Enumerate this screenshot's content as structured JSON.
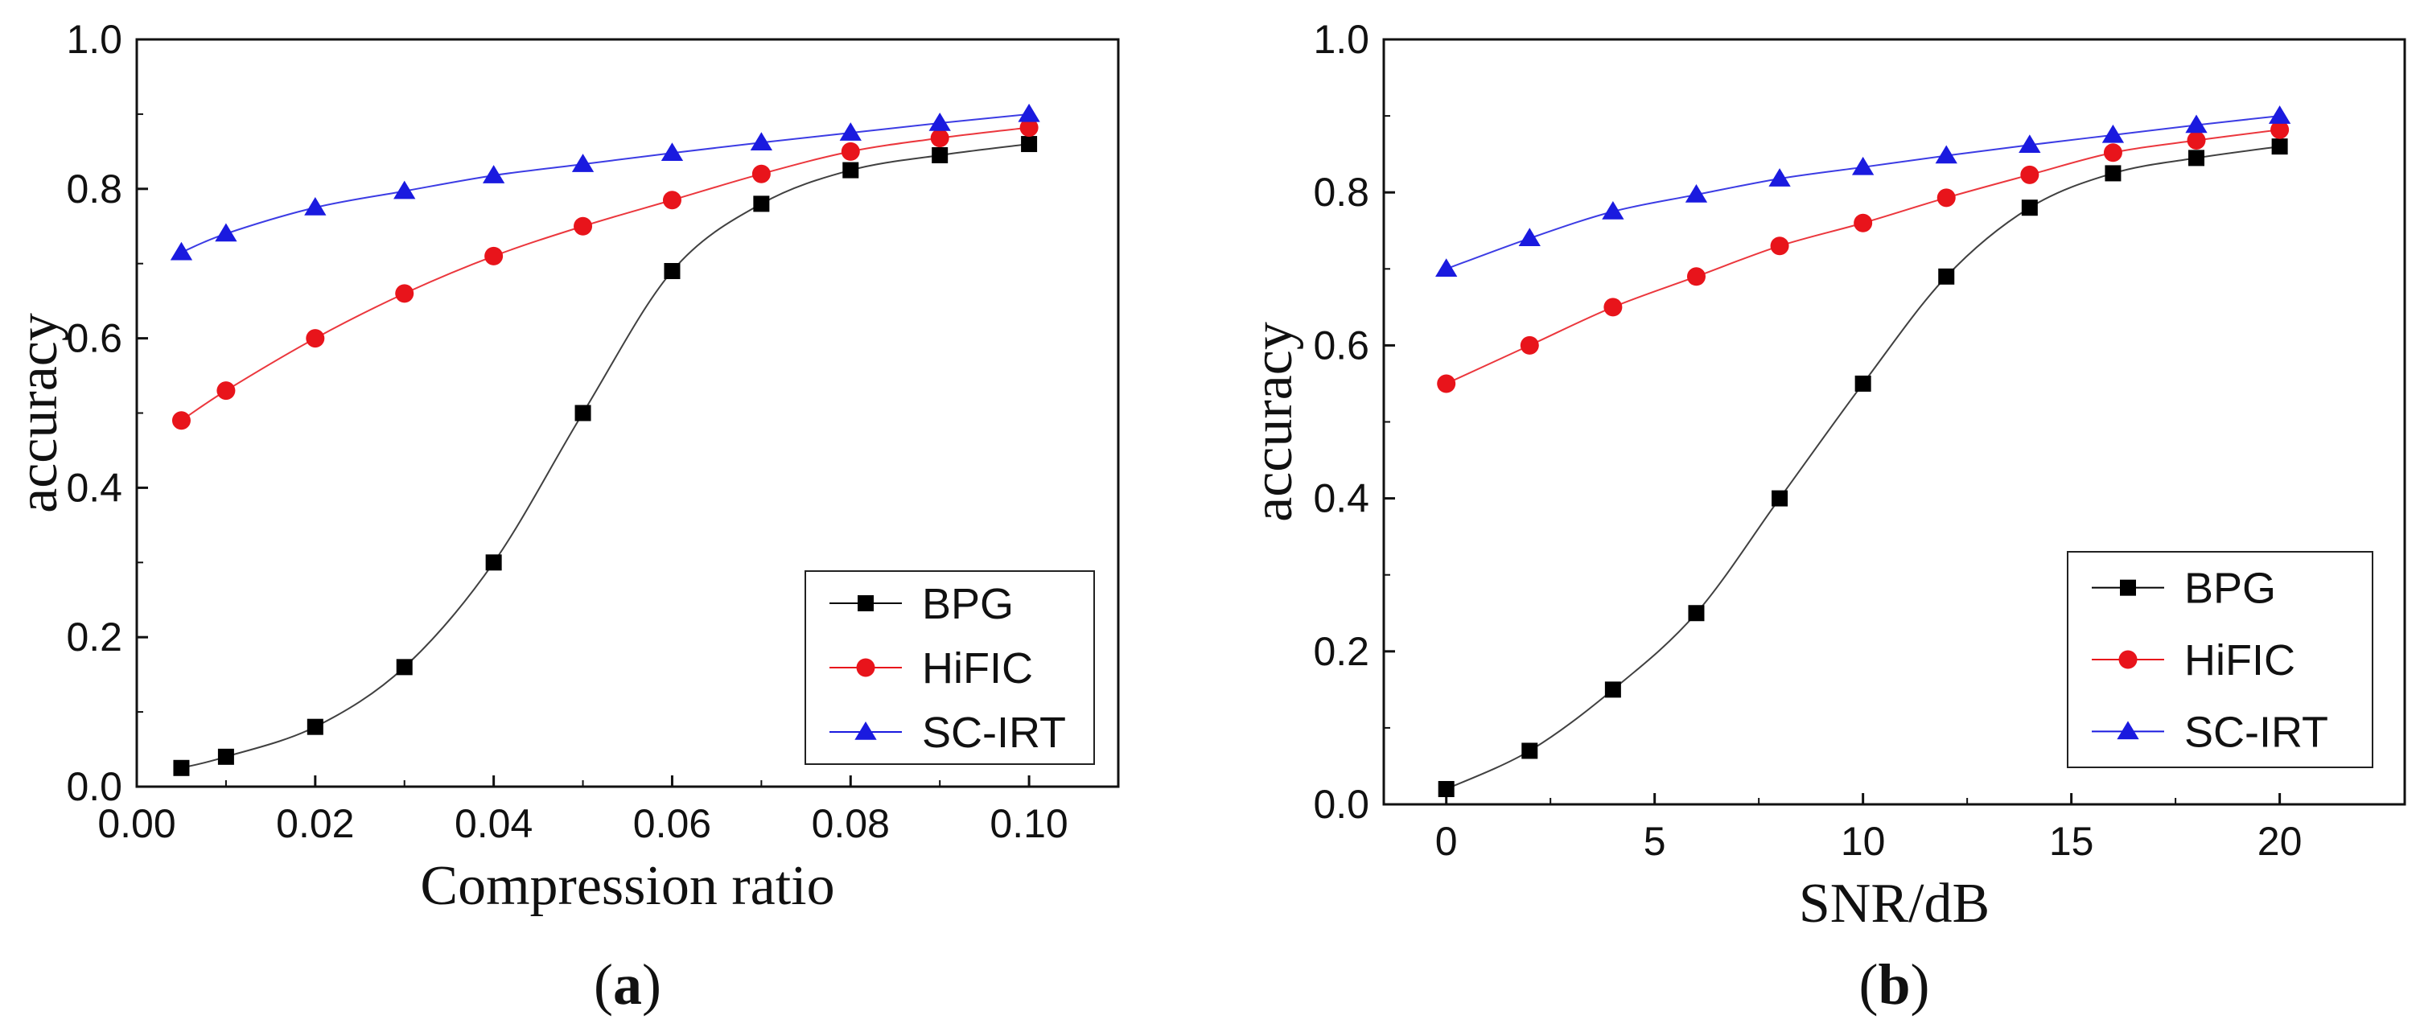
{
  "chart_data": [
    {
      "type": "line",
      "panel_label": "a",
      "title": "",
      "xlabel": "Compression ratio",
      "ylabel": "accuracy",
      "xlim": [
        0.0,
        0.11
      ],
      "ylim": [
        0.0,
        1.0
      ],
      "xticks": [
        0.0,
        0.02,
        0.04,
        0.06,
        0.08,
        0.1
      ],
      "xtick_labels": [
        "0.00",
        "0.02",
        "0.04",
        "0.06",
        "0.08",
        "0.10"
      ],
      "yticks": [
        0.0,
        0.2,
        0.4,
        0.6,
        0.8,
        1.0
      ],
      "ytick_labels": [
        "0.0",
        "0.2",
        "0.4",
        "0.6",
        "0.8",
        "1.0"
      ],
      "legend_position": "bottom-right",
      "x": [
        0.005,
        0.01,
        0.02,
        0.03,
        0.04,
        0.05,
        0.06,
        0.07,
        0.08,
        0.09,
        0.1
      ],
      "series": [
        {
          "name": "BPG",
          "color": "#000000",
          "marker": "square",
          "values": [
            0.025,
            0.04,
            0.08,
            0.16,
            0.3,
            0.5,
            0.69,
            0.78,
            0.825,
            0.845,
            0.86
          ]
        },
        {
          "name": "HiFIC",
          "color": "#e8141b",
          "marker": "circle",
          "values": [
            0.49,
            0.53,
            0.6,
            0.66,
            0.71,
            0.75,
            0.785,
            0.82,
            0.85,
            0.868,
            0.882
          ]
        },
        {
          "name": "SC-IRT",
          "color": "#1a1adf",
          "marker": "triangle",
          "values": [
            0.715,
            0.74,
            0.775,
            0.797,
            0.818,
            0.833,
            0.848,
            0.862,
            0.875,
            0.888,
            0.9
          ]
        }
      ]
    },
    {
      "type": "line",
      "panel_label": "b",
      "title": "",
      "xlabel": "SNR/dB",
      "ylabel": "accuracy",
      "xlim": [
        -1.5,
        23
      ],
      "ylim": [
        0.0,
        1.0
      ],
      "xticks": [
        0,
        5,
        10,
        15,
        20
      ],
      "xtick_labels": [
        "0",
        "5",
        "10",
        "15",
        "20"
      ],
      "yticks": [
        0.0,
        0.2,
        0.4,
        0.6,
        0.8,
        1.0
      ],
      "ytick_labels": [
        "0.0",
        "0.2",
        "0.4",
        "0.6",
        "0.8",
        "1.0"
      ],
      "legend_position": "bottom-right",
      "x": [
        0,
        2,
        4,
        6,
        8,
        10,
        12,
        14,
        16,
        18,
        20
      ],
      "series": [
        {
          "name": "BPG",
          "color": "#000000",
          "marker": "square",
          "values": [
            0.02,
            0.07,
            0.15,
            0.25,
            0.4,
            0.55,
            0.69,
            0.78,
            0.825,
            0.845,
            0.86
          ]
        },
        {
          "name": "HiFIC",
          "color": "#e8141b",
          "marker": "circle",
          "values": [
            0.55,
            0.6,
            0.65,
            0.69,
            0.73,
            0.76,
            0.793,
            0.823,
            0.852,
            0.868,
            0.882
          ]
        },
        {
          "name": "SC-IRT",
          "color": "#1a1adf",
          "marker": "triangle",
          "values": [
            0.7,
            0.74,
            0.775,
            0.797,
            0.818,
            0.833,
            0.848,
            0.862,
            0.875,
            0.888,
            0.9
          ]
        }
      ]
    }
  ]
}
